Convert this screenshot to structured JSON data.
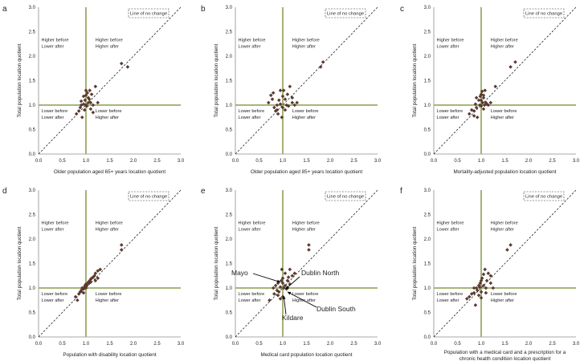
{
  "figure": {
    "y_axis_label": "Total population location quotient",
    "tick_labels": [
      "0.0",
      "0.5",
      "1.0",
      "1.5",
      "2.0",
      "2.5",
      "3.0"
    ],
    "legend_label": "Line of no change",
    "quadrants": {
      "top_left": [
        "Higher before",
        "Lower after"
      ],
      "top_right": [
        "Higher before",
        "Higher after"
      ],
      "bottom_left": [
        "Lower before",
        "Lower after"
      ],
      "bottom_right": [
        "Lower before",
        "Higher after"
      ]
    },
    "colors": {
      "point": "#5b3a2e",
      "threshold_line": "#9aab68",
      "diagonal": "#000000"
    }
  },
  "chart_data": [
    {
      "type": "scatter",
      "panel": "a",
      "xlabel": "Older population aged 65+ years location quotient",
      "ylabel": "Total population location quotient",
      "xlim": [
        0,
        3
      ],
      "ylim": [
        0,
        3
      ],
      "points": [
        [
          0.8,
          0.82
        ],
        [
          0.85,
          0.88
        ],
        [
          0.88,
          0.95
        ],
        [
          0.9,
          1.0
        ],
        [
          0.92,
          0.75
        ],
        [
          0.95,
          1.02
        ],
        [
          0.95,
          1.18
        ],
        [
          0.97,
          0.9
        ],
        [
          0.98,
          1.1
        ],
        [
          1.0,
          1.2
        ],
        [
          1.0,
          1.0
        ],
        [
          1.02,
          0.98
        ],
        [
          1.03,
          1.25
        ],
        [
          1.05,
          1.05
        ],
        [
          1.05,
          1.15
        ],
        [
          1.07,
          1.12
        ],
        [
          1.08,
          1.3
        ],
        [
          1.1,
          0.92
        ],
        [
          1.1,
          1.05
        ],
        [
          1.12,
          1.22
        ],
        [
          1.15,
          1.0
        ],
        [
          1.2,
          1.38
        ],
        [
          1.25,
          1.05
        ],
        [
          1.75,
          1.85
        ],
        [
          1.88,
          1.78
        ],
        [
          1.0,
          1.3
        ],
        [
          0.9,
          1.08
        ],
        [
          1.15,
          0.85
        ]
      ]
    },
    {
      "type": "scatter",
      "panel": "b",
      "xlabel": "Older population aged 85+ years location quotient",
      "ylabel": "Total population location quotient",
      "xlim": [
        0,
        3
      ],
      "ylim": [
        0,
        3
      ],
      "points": [
        [
          0.7,
          1.05
        ],
        [
          0.75,
          1.2
        ],
        [
          0.8,
          1.25
        ],
        [
          0.82,
          0.95
        ],
        [
          0.85,
          0.88
        ],
        [
          0.88,
          1.0
        ],
        [
          0.9,
          0.82
        ],
        [
          0.92,
          1.1
        ],
        [
          0.95,
          1.02
        ],
        [
          0.98,
          0.75
        ],
        [
          1.0,
          1.18
        ],
        [
          1.0,
          0.95
        ],
        [
          1.02,
          1.3
        ],
        [
          1.05,
          0.9
        ],
        [
          1.05,
          1.12
        ],
        [
          1.08,
          1.0
        ],
        [
          1.1,
          1.22
        ],
        [
          1.12,
          0.98
        ],
        [
          1.15,
          1.38
        ],
        [
          1.2,
          1.05
        ],
        [
          1.2,
          1.15
        ],
        [
          1.25,
          1.0
        ],
        [
          1.8,
          1.78
        ],
        [
          1.85,
          1.88
        ],
        [
          0.78,
          1.12
        ],
        [
          1.3,
          1.05
        ],
        [
          0.95,
          1.3
        ],
        [
          0.88,
          0.9
        ]
      ]
    },
    {
      "type": "scatter",
      "panel": "c",
      "xlabel": "Mortality-adjusted population location quotient",
      "ylabel": "Total population location quotient",
      "xlim": [
        0,
        3
      ],
      "ylim": [
        0,
        3
      ],
      "points": [
        [
          0.75,
          0.82
        ],
        [
          0.8,
          0.9
        ],
        [
          0.85,
          0.88
        ],
        [
          0.88,
          1.02
        ],
        [
          0.9,
          0.95
        ],
        [
          0.92,
          0.75
        ],
        [
          0.95,
          1.1
        ],
        [
          0.97,
          1.0
        ],
        [
          0.98,
          1.18
        ],
        [
          1.0,
          1.22
        ],
        [
          1.0,
          0.98
        ],
        [
          1.02,
          1.28
        ],
        [
          1.03,
          1.05
        ],
        [
          1.05,
          0.92
        ],
        [
          1.05,
          1.15
        ],
        [
          1.07,
          1.0
        ],
        [
          1.08,
          1.3
        ],
        [
          1.1,
          1.05
        ],
        [
          1.12,
          1.02
        ],
        [
          1.15,
          1.0
        ],
        [
          1.2,
          1.05
        ],
        [
          1.3,
          1.38
        ],
        [
          1.62,
          1.78
        ],
        [
          1.72,
          1.88
        ],
        [
          0.9,
          1.15
        ],
        [
          1.0,
          1.1
        ],
        [
          1.05,
          1.2
        ],
        [
          0.85,
          0.78
        ]
      ]
    },
    {
      "type": "scatter",
      "panel": "d",
      "xlabel": "Population with disability location quotient",
      "ylabel": "Total population location quotient",
      "xlim": [
        0,
        3
      ],
      "ylim": [
        0,
        3
      ],
      "points": [
        [
          0.78,
          0.82
        ],
        [
          0.82,
          0.75
        ],
        [
          0.85,
          0.88
        ],
        [
          0.88,
          0.92
        ],
        [
          0.9,
          0.95
        ],
        [
          0.92,
          1.0
        ],
        [
          0.95,
          0.98
        ],
        [
          0.97,
          1.02
        ],
        [
          0.98,
          1.05
        ],
        [
          1.0,
          1.0
        ],
        [
          1.0,
          1.08
        ],
        [
          1.02,
          1.05
        ],
        [
          1.05,
          1.1
        ],
        [
          1.05,
          1.12
        ],
        [
          1.08,
          1.15
        ],
        [
          1.1,
          1.18
        ],
        [
          1.12,
          1.2
        ],
        [
          1.15,
          1.22
        ],
        [
          1.18,
          1.25
        ],
        [
          1.2,
          1.3
        ],
        [
          1.25,
          1.35
        ],
        [
          1.3,
          1.38
        ],
        [
          1.75,
          1.78
        ],
        [
          1.75,
          1.88
        ],
        [
          1.1,
          1.12
        ],
        [
          1.2,
          1.15
        ],
        [
          1.25,
          1.2
        ],
        [
          0.95,
          0.9
        ]
      ]
    },
    {
      "type": "scatter",
      "panel": "e",
      "xlabel": "Medical card population location quotient",
      "ylabel": "Total population location quotient",
      "xlim": [
        0,
        3
      ],
      "ylim": [
        0,
        3
      ],
      "points": [
        [
          0.72,
          0.75
        ],
        [
          0.8,
          1.0
        ],
        [
          0.82,
          0.88
        ],
        [
          0.85,
          1.05
        ],
        [
          0.88,
          0.95
        ],
        [
          0.9,
          1.1
        ],
        [
          0.92,
          0.92
        ],
        [
          0.95,
          1.02
        ],
        [
          0.97,
          1.15
        ],
        [
          0.98,
          1.38
        ],
        [
          1.0,
          0.82
        ],
        [
          1.0,
          1.2
        ],
        [
          1.02,
          1.0
        ],
        [
          1.05,
          1.05
        ],
        [
          1.05,
          1.3
        ],
        [
          1.08,
          0.98
        ],
        [
          1.1,
          1.15
        ],
        [
          1.12,
          1.22
        ],
        [
          1.15,
          1.08
        ],
        [
          1.2,
          1.25
        ],
        [
          1.25,
          1.3
        ],
        [
          1.55,
          1.78
        ],
        [
          1.55,
          1.88
        ],
        [
          0.9,
          0.85
        ],
        [
          1.0,
          1.1
        ],
        [
          1.1,
          1.0
        ],
        [
          0.95,
          0.78
        ],
        [
          1.15,
          1.38
        ]
      ],
      "annotations": [
        "Mayo",
        "Dublin North",
        "Dublin South",
        "Kildare"
      ]
    },
    {
      "type": "scatter",
      "panel": "f",
      "xlabel_lines": [
        "Population with a medical card and a prescription for a",
        "chronic health condition location quotient"
      ],
      "ylabel": "Total population location quotient",
      "xlim": [
        0,
        3
      ],
      "ylim": [
        0,
        3
      ],
      "points": [
        [
          0.7,
          0.78
        ],
        [
          0.75,
          0.82
        ],
        [
          0.8,
          0.88
        ],
        [
          0.85,
          0.9
        ],
        [
          0.88,
          0.65
        ],
        [
          0.9,
          1.0
        ],
        [
          0.92,
          0.95
        ],
        [
          0.95,
          1.05
        ],
        [
          0.97,
          1.02
        ],
        [
          0.98,
          1.1
        ],
        [
          1.0,
          0.92
        ],
        [
          1.02,
          1.2
        ],
        [
          1.05,
          1.28
        ],
        [
          1.05,
          1.05
        ],
        [
          1.08,
          1.38
        ],
        [
          1.1,
          1.0
        ],
        [
          1.12,
          1.15
        ],
        [
          1.15,
          1.3
        ],
        [
          1.2,
          1.25
        ],
        [
          1.25,
          1.0
        ],
        [
          1.55,
          1.78
        ],
        [
          1.62,
          1.88
        ],
        [
          1.0,
          1.15
        ],
        [
          0.95,
          0.85
        ],
        [
          1.1,
          0.9
        ],
        [
          1.2,
          1.1
        ],
        [
          0.85,
          1.0
        ],
        [
          1.0,
          0.8
        ]
      ]
    }
  ]
}
